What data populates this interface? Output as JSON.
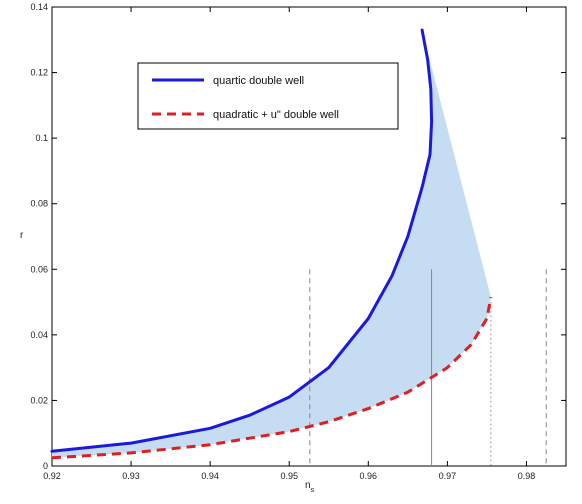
{
  "chart_data": {
    "type": "line",
    "xlabel": "n",
    "xlabel_sub": "s",
    "ylabel": "r",
    "xlim": [
      0.92,
      0.985
    ],
    "ylim": [
      0,
      0.14
    ],
    "x_ticks": [
      0.92,
      0.93,
      0.94,
      0.95,
      0.96,
      0.97,
      0.98
    ],
    "x_tick_labels": [
      "0.92",
      "0.93",
      "0.94",
      "0.95",
      "0.96",
      "0.97",
      "0.98"
    ],
    "y_ticks": [
      0,
      0.02,
      0.04,
      0.06,
      0.08,
      0.1,
      0.12,
      0.14
    ],
    "y_tick_labels": [
      "0",
      "0.02",
      "0.04",
      "0.06",
      "0.08",
      "0.1",
      "0.12",
      "0.14"
    ],
    "grid": false,
    "legend_position": "top-left-inside",
    "series": [
      {
        "name": "quartic double well",
        "color": "#1a1adc",
        "style": "solid",
        "x": [
          0.92,
          0.93,
          0.94,
          0.945,
          0.95,
          0.955,
          0.96,
          0.963,
          0.965,
          0.9668,
          0.9678,
          0.968,
          0.9679,
          0.9675,
          0.9668
        ],
        "y": [
          0.0045,
          0.007,
          0.0115,
          0.0155,
          0.021,
          0.03,
          0.045,
          0.058,
          0.07,
          0.085,
          0.095,
          0.105,
          0.115,
          0.124,
          0.133
        ]
      },
      {
        "name": "quadratic + u\" double well",
        "color": "#e02020",
        "style": "dashed",
        "x": [
          0.92,
          0.93,
          0.94,
          0.95,
          0.955,
          0.96,
          0.965,
          0.97,
          0.973,
          0.975,
          0.9755
        ],
        "y": [
          0.0025,
          0.004,
          0.0065,
          0.0105,
          0.0135,
          0.0175,
          0.0225,
          0.03,
          0.037,
          0.045,
          0.0515
        ]
      }
    ],
    "vertical_lines": [
      {
        "x": 0.9526,
        "y_top": 0.06,
        "style": "dashed",
        "color": "#888888"
      },
      {
        "x": 0.968,
        "y_top": 0.06,
        "style": "solid",
        "color": "#888888"
      },
      {
        "x": 0.9755,
        "y_top": 0.05,
        "style": "dotted",
        "color": "#888888"
      },
      {
        "x": 0.9825,
        "y_top": 0.06,
        "style": "dashed",
        "color": "#888888"
      }
    ],
    "fill_color": "#c6dcf2"
  }
}
